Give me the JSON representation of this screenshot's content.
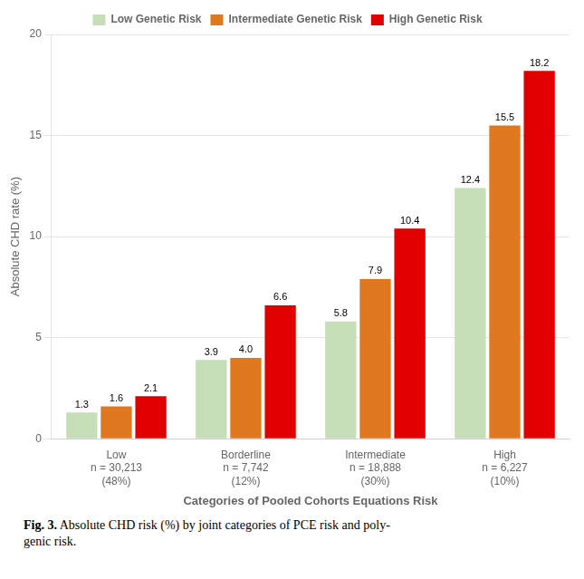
{
  "chart_data": {
    "type": "bar",
    "categories": [
      "Low\nn = 30,213\n(48%)",
      "Borderline\nn = 7,742\n(12%)",
      "Intermediate\nn = 18,888\n(30%)",
      "High\nn = 6,227\n(10%)"
    ],
    "series": [
      {
        "name": "Low Genetic Risk",
        "color": "#c6deb8",
        "values": [
          1.3,
          3.9,
          5.8,
          12.4
        ],
        "value_labels": [
          "1.3",
          "3.9",
          "5.8",
          "12.4"
        ]
      },
      {
        "name": "Intermediate Genetic Risk",
        "color": "#e07820",
        "values": [
          1.6,
          4.0,
          7.9,
          15.5
        ],
        "value_labels": [
          "1.6",
          "4.0",
          "7.9",
          "15.5"
        ]
      },
      {
        "name": "High Genetic Risk",
        "color": "#e00000",
        "values": [
          2.1,
          6.6,
          10.4,
          18.2
        ],
        "value_labels": [
          "2.1",
          "6.6",
          "10.4",
          "18.2"
        ]
      }
    ],
    "xlabel": "Categories of Pooled Cohorts Equations Risk",
    "ylabel": "Absolute CHD rate (%)",
    "ylim": [
      0,
      20
    ],
    "yticks": [
      0,
      5,
      10,
      15,
      20
    ],
    "grid": "y",
    "legend": "top",
    "data_labels": true,
    "annotations": [
      "Fig. 3.",
      "Absolute CHD risk (%) by joint categories of PCE risk and poly-\ngenic risk."
    ]
  }
}
